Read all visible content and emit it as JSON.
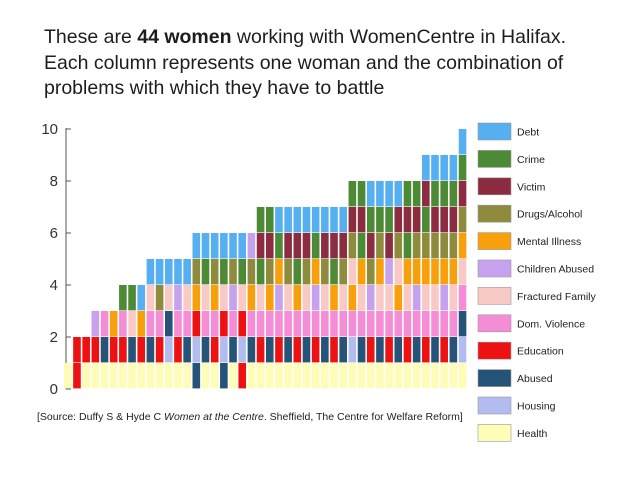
{
  "title": {
    "part1": "These are ",
    "bold": "44 women",
    "part2": " working with WomenCentre in Halifax. Each column represents one woman and the combination of problems with which they have to battle"
  },
  "source": {
    "prefix": "[Source: Duffy S & Hyde C ",
    "italic": "Women at the Centre",
    "suffix": ". Sheffield, The Centre for Welfare Reform]"
  },
  "chart_data": {
    "type": "bar",
    "stacked": true,
    "ylim": [
      0,
      10
    ],
    "yticks": [
      0,
      2,
      4,
      6,
      8,
      10
    ],
    "legend_position": "right",
    "categories": [
      "Health",
      "Housing",
      "Abused",
      "Education",
      "Dom. Violence",
      "Fractured Family",
      "Children Abused",
      "Mental Illness",
      "Drugs/Alcohol",
      "Victim",
      "Crime",
      "Debt"
    ],
    "colors": {
      "Health": "#fdfdb8",
      "Housing": "#b3bcef",
      "Abused": "#265479",
      "Education": "#ee1111",
      "Dom. Violence": "#f48dd6",
      "Fractured Family": "#f8c9c5",
      "Children Abused": "#c6a2ee",
      "Mental Illness": "#f8a00b",
      "Drugs/Alcohol": "#8f8b3c",
      "Victim": "#8c2c40",
      "Crime": "#4c8a35",
      "Debt": "#55aff0"
    },
    "columns": [
      [
        "Health"
      ],
      [
        "Education",
        "Education"
      ],
      [
        "Health",
        "Education"
      ],
      [
        "Health",
        "Education",
        "Children Abused"
      ],
      [
        "Health",
        "Abused",
        "Dom. Violence"
      ],
      [
        "Health",
        "Education",
        "Mental Illness"
      ],
      [
        "Health",
        "Education",
        "Dom. Violence",
        "Crime"
      ],
      [
        "Health",
        "Abused",
        "Fractured Family",
        "Crime"
      ],
      [
        "Health",
        "Education",
        "Mental Illness",
        "Debt"
      ],
      [
        "Health",
        "Abused",
        "Dom. Violence",
        "Fractured Family",
        "Debt"
      ],
      [
        "Health",
        "Education",
        "Dom. Violence",
        "Drugs/Alcohol",
        "Debt"
      ],
      [
        "Health",
        "Housing",
        "Abused",
        "Fractured Family",
        "Debt"
      ],
      [
        "Health",
        "Education",
        "Dom. Violence",
        "Children Abused",
        "Debt"
      ],
      [
        "Health",
        "Abused",
        "Dom. Violence",
        "Fractured Family",
        "Debt"
      ],
      [
        "Abused",
        "Housing",
        "Education",
        "Mental Illness",
        "Drugs/Alcohol",
        "Debt"
      ],
      [
        "Health",
        "Abused",
        "Dom. Violence",
        "Fractured Family",
        "Crime",
        "Debt"
      ],
      [
        "Health",
        "Education",
        "Dom. Violence",
        "Mental Illness",
        "Drugs/Alcohol",
        "Debt"
      ],
      [
        "Abused",
        "Housing",
        "Education",
        "Fractured Family",
        "Crime",
        "Debt"
      ],
      [
        "Health",
        "Abused",
        "Dom. Violence",
        "Children Abused",
        "Drugs/Alcohol",
        "Debt"
      ],
      [
        "Education",
        "Housing",
        "Education",
        "Fractured Family",
        "Crime",
        "Debt"
      ],
      [
        "Health",
        "Abused",
        "Dom. Violence",
        "Mental Illness",
        "Drugs/Alcohol",
        "Children Abused"
      ],
      [
        "Health",
        "Education",
        "Dom. Violence",
        "Fractured Family",
        "Crime",
        "Victim",
        "Crime"
      ],
      [
        "Health",
        "Abused",
        "Dom. Violence",
        "Mental Illness",
        "Drugs/Alcohol",
        "Victim",
        "Crime"
      ],
      [
        "Health",
        "Education",
        "Dom. Violence",
        "Children Abused",
        "Mental Illness",
        "Crime",
        "Debt"
      ],
      [
        "Health",
        "Abused",
        "Dom. Violence",
        "Fractured Family",
        "Drugs/Alcohol",
        "Victim",
        "Debt"
      ],
      [
        "Health",
        "Education",
        "Dom. Violence",
        "Mental Illness",
        "Crime",
        "Victim",
        "Debt"
      ],
      [
        "Health",
        "Abused",
        "Dom. Violence",
        "Fractured Family",
        "Drugs/Alcohol",
        "Victim",
        "Debt"
      ],
      [
        "Health",
        "Education",
        "Dom. Violence",
        "Children Abused",
        "Mental Illness",
        "Crime",
        "Debt"
      ],
      [
        "Health",
        "Abused",
        "Dom. Violence",
        "Fractured Family",
        "Drugs/Alcohol",
        "Victim",
        "Debt"
      ],
      [
        "Health",
        "Education",
        "Dom. Violence",
        "Mental Illness",
        "Crime",
        "Victim",
        "Debt"
      ],
      [
        "Health",
        "Abused",
        "Dom. Violence",
        "Fractured Family",
        "Drugs/Alcohol",
        "Victim",
        "Debt"
      ],
      [
        "Health",
        "Housing",
        "Dom. Violence",
        "Mental Illness",
        "Fractured Family",
        "Drugs/Alcohol",
        "Victim",
        "Crime"
      ],
      [
        "Health",
        "Abused",
        "Dom. Violence",
        "Fractured Family",
        "Mental Illness",
        "Crime",
        "Victim",
        "Crime"
      ],
      [
        "Health",
        "Education",
        "Dom. Violence",
        "Children Abused",
        "Drugs/Alcohol",
        "Victim",
        "Crime",
        "Debt"
      ],
      [
        "Health",
        "Abused",
        "Dom. Violence",
        "Fractured Family",
        "Mental Illness",
        "Drugs/Alcohol",
        "Crime",
        "Debt"
      ],
      [
        "Health",
        "Education",
        "Dom. Violence",
        "Fractured Family",
        "Children Abused",
        "Victim",
        "Crime",
        "Debt"
      ],
      [
        "Health",
        "Abused",
        "Dom. Violence",
        "Mental Illness",
        "Fractured Family",
        "Drugs/Alcohol",
        "Victim",
        "Debt"
      ],
      [
        "Health",
        "Education",
        "Dom. Violence",
        "Fractured Family",
        "Mental Illness",
        "Crime",
        "Victim",
        "Crime"
      ],
      [
        "Health",
        "Abused",
        "Dom. Violence",
        "Children Abused",
        "Mental Illness",
        "Drugs/Alcohol",
        "Victim",
        "Crime"
      ],
      [
        "Health",
        "Education",
        "Dom. Violence",
        "Fractured Family",
        "Mental Illness",
        "Drugs/Alcohol",
        "Crime",
        "Victim",
        "Debt"
      ],
      [
        "Health",
        "Abused",
        "Dom. Violence",
        "Fractured Family",
        "Mental Illness",
        "Drugs/Alcohol",
        "Victim",
        "Crime",
        "Debt"
      ],
      [
        "Health",
        "Education",
        "Dom. Violence",
        "Children Abused",
        "Mental Illness",
        "Drugs/Alcohol",
        "Victim",
        "Crime",
        "Debt"
      ],
      [
        "Health",
        "Abused",
        "Dom. Violence",
        "Fractured Family",
        "Mental Illness",
        "Drugs/Alcohol",
        "Victim",
        "Crime",
        "Debt"
      ],
      [
        "Health",
        "Housing",
        "Abused",
        "Dom. Violence",
        "Fractured Family",
        "Mental Illness",
        "Drugs/Alcohol",
        "Victim",
        "Crime",
        "Debt"
      ]
    ],
    "legend_order": [
      "Debt",
      "Crime",
      "Victim",
      "Drugs/Alcohol",
      "Mental Illness",
      "Children Abused",
      "Fractured Family",
      "Dom. Violence",
      "Education",
      "Abused",
      "Housing",
      "Health"
    ]
  }
}
